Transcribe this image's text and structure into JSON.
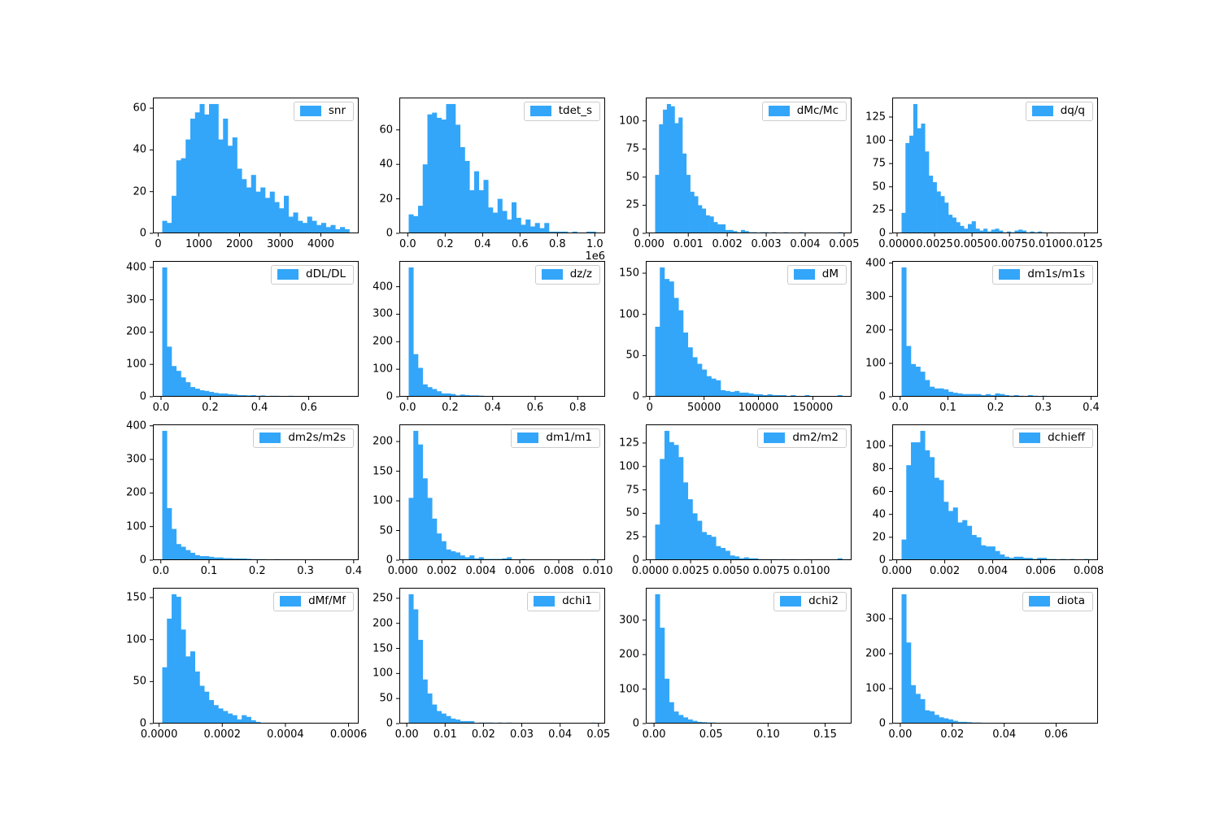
{
  "figure": {
    "background": "#ffffff",
    "bar_color": "#33A6FA",
    "spine_color": "#000000",
    "legend_border": "#cccccc",
    "legend_swatch_icon": "histogram-color-patch"
  },
  "chart_data": [
    {
      "type": "bar",
      "legend": "snr",
      "bin_start": 100,
      "bin_width": 115,
      "counts": [
        6,
        5,
        18,
        35,
        36,
        45,
        55,
        58,
        62,
        57,
        62,
        62,
        45,
        55,
        42,
        46,
        31,
        26,
        22,
        28,
        20,
        22,
        17,
        20,
        15,
        12,
        18,
        8,
        10,
        6,
        5,
        8,
        6,
        4,
        5,
        3,
        4,
        2,
        3,
        2
      ],
      "xlim": [
        -130,
        4930
      ],
      "ylim": [
        0,
        65.1
      ],
      "xticks": [
        0,
        1000,
        2000,
        3000,
        4000
      ],
      "xtick_labels": [
        "0",
        "1000",
        "2000",
        "3000",
        "4000"
      ],
      "yticks": [
        0,
        20,
        40,
        60
      ],
      "ytick_labels": [
        "0",
        "20",
        "40",
        "60"
      ],
      "offset_label": ""
    },
    {
      "type": "bar",
      "legend": "tdet_s",
      "bin_start": 5000,
      "bin_width": 25000,
      "counts": [
        11,
        10,
        16,
        40,
        69,
        70,
        67,
        66,
        75,
        75,
        63,
        50,
        42,
        25,
        36,
        25,
        31,
        15,
        12,
        20,
        13,
        8,
        18,
        9,
        5,
        8,
        4,
        6,
        3,
        6,
        1,
        1,
        1,
        1,
        0,
        1,
        0,
        0,
        1,
        1
      ],
      "xlim": [
        -45000,
        1055000
      ],
      "ylim": [
        0,
        78.75
      ],
      "xticks": [
        0,
        200000,
        400000,
        600000,
        800000,
        1000000
      ],
      "xtick_labels": [
        "0.0",
        "0.2",
        "0.4",
        "0.6",
        "0.8",
        "1.0"
      ],
      "yticks": [
        0,
        20,
        40,
        60
      ],
      "ytick_labels": [
        "0",
        "20",
        "40",
        "60"
      ],
      "offset_label": "1e6"
    },
    {
      "type": "bar",
      "legend": "dMc/Mc",
      "bin_start": 0.00015,
      "bin_width": 0.0001,
      "counts": [
        52,
        97,
        110,
        115,
        113,
        98,
        103,
        71,
        52,
        37,
        33,
        25,
        22,
        16,
        15,
        10,
        8,
        8,
        3,
        3,
        2,
        1,
        3,
        2,
        1,
        1,
        0,
        1,
        1,
        0,
        1,
        0,
        0,
        1,
        0,
        0,
        0,
        1,
        0,
        0,
        0,
        0,
        0,
        0,
        0,
        0,
        0,
        1
      ],
      "xlim": [
        -9e-05,
        0.00519
      ],
      "ylim": [
        0,
        120.75
      ],
      "xticks": [
        0.0,
        0.001,
        0.002,
        0.003,
        0.004,
        0.005
      ],
      "xtick_labels": [
        "0.000",
        "0.001",
        "0.002",
        "0.003",
        "0.004",
        "0.005"
      ],
      "yticks": [
        0,
        25,
        50,
        75,
        100
      ],
      "ytick_labels": [
        "0",
        "25",
        "50",
        "75",
        "100"
      ],
      "offset_label": ""
    },
    {
      "type": "bar",
      "legend": "dq/q",
      "bin_start": 0.0003,
      "bin_width": 0.00026,
      "counts": [
        22,
        97,
        105,
        139,
        113,
        118,
        88,
        62,
        55,
        45,
        40,
        33,
        20,
        17,
        12,
        8,
        5,
        10,
        13,
        5,
        3,
        5,
        2,
        4,
        5,
        3,
        1,
        2,
        1,
        3,
        4,
        3,
        1,
        2,
        1,
        2,
        1,
        0,
        1,
        0,
        1,
        1,
        0,
        0,
        0,
        0,
        0,
        1
      ],
      "xlim": [
        -0.000324,
        0.013404
      ],
      "ylim": [
        0,
        145.95
      ],
      "xticks": [
        0.0,
        0.0025,
        0.005,
        0.0075,
        0.01,
        0.0125
      ],
      "xtick_labels": [
        "0.0000",
        "0.0025",
        "0.0050",
        "0.0075",
        "0.0100",
        "0.0125"
      ],
      "yticks": [
        0,
        25,
        50,
        75,
        100,
        125
      ],
      "ytick_labels": [
        "0",
        "25",
        "50",
        "75",
        "100",
        "125"
      ],
      "offset_label": ""
    },
    {
      "type": "bar",
      "legend": "dDL/DL",
      "bin_start": 0.005,
      "bin_width": 0.019,
      "counts": [
        400,
        155,
        95,
        80,
        60,
        45,
        30,
        25,
        20,
        18,
        15,
        12,
        10,
        10,
        8,
        7,
        5,
        5,
        4,
        5,
        3,
        4,
        2,
        3,
        3,
        2,
        2,
        3,
        2,
        1,
        2,
        1,
        2,
        1,
        1,
        2,
        1,
        1,
        1,
        2
      ],
      "xlim": [
        -0.033,
        0.803
      ],
      "ylim": [
        0,
        420
      ],
      "xticks": [
        0.0,
        0.2,
        0.4,
        0.6
      ],
      "xtick_labels": [
        "0.0",
        "0.2",
        "0.4",
        "0.6"
      ],
      "yticks": [
        0,
        100,
        200,
        300,
        400
      ],
      "ytick_labels": [
        "0",
        "100",
        "200",
        "300",
        "400"
      ],
      "offset_label": ""
    },
    {
      "type": "bar",
      "legend": "dz/z",
      "bin_start": 0.005,
      "bin_width": 0.022,
      "counts": [
        470,
        155,
        105,
        45,
        35,
        28,
        20,
        12,
        12,
        10,
        5,
        8,
        6,
        5,
        5,
        4,
        3,
        3,
        2,
        3,
        1,
        2,
        1,
        2,
        1,
        1,
        0,
        1,
        0,
        1,
        0,
        0,
        1,
        0,
        0,
        1,
        0,
        0,
        0,
        1
      ],
      "xlim": [
        -0.039,
        0.929
      ],
      "ylim": [
        0,
        493.5
      ],
      "xticks": [
        0.0,
        0.2,
        0.4,
        0.6,
        0.8
      ],
      "xtick_labels": [
        "0.0",
        "0.2",
        "0.4",
        "0.6",
        "0.8"
      ],
      "yticks": [
        0,
        100,
        200,
        300,
        400
      ],
      "ytick_labels": [
        "0",
        "100",
        "200",
        "300",
        "400"
      ],
      "offset_label": ""
    },
    {
      "type": "bar",
      "legend": "dM",
      "bin_start": 5000,
      "bin_width": 4300,
      "counts": [
        85,
        157,
        143,
        140,
        120,
        105,
        78,
        60,
        48,
        40,
        33,
        25,
        22,
        20,
        8,
        7,
        6,
        7,
        5,
        5,
        4,
        3,
        3,
        2,
        3,
        2,
        2,
        2,
        1,
        2,
        1,
        1,
        2,
        1,
        1,
        1,
        1,
        1,
        1,
        2
      ],
      "xlim": [
        -3600,
        185600
      ],
      "ylim": [
        0,
        164.85
      ],
      "xticks": [
        0,
        50000,
        100000,
        150000
      ],
      "xtick_labels": [
        "0",
        "50000",
        "100000",
        "150000"
      ],
      "yticks": [
        0,
        50,
        100,
        150
      ],
      "ytick_labels": [
        "0",
        "50",
        "100",
        "150"
      ],
      "offset_label": ""
    },
    {
      "type": "bar",
      "legend": "dm1s/m1s",
      "bin_start": 0.003,
      "bin_width": 0.0098,
      "counts": [
        387,
        152,
        98,
        90,
        75,
        50,
        30,
        25,
        25,
        22,
        15,
        12,
        10,
        8,
        8,
        8,
        8,
        5,
        8,
        5,
        10,
        8,
        5,
        3,
        5,
        3,
        2,
        5,
        3,
        2,
        3,
        2,
        1,
        2,
        1,
        1,
        1,
        2,
        1,
        2
      ],
      "xlim": [
        -0.0166,
        0.4146
      ],
      "ylim": [
        0,
        406.35
      ],
      "xticks": [
        0.0,
        0.1,
        0.2,
        0.3,
        0.4
      ],
      "xtick_labels": [
        "0.0",
        "0.1",
        "0.2",
        "0.3",
        "0.4"
      ],
      "yticks": [
        0,
        100,
        200,
        300,
        400
      ],
      "ytick_labels": [
        "0",
        "100",
        "200",
        "300",
        "400"
      ],
      "offset_label": ""
    },
    {
      "type": "bar",
      "legend": "dm2s/m2s",
      "bin_start": 0.003,
      "bin_width": 0.0097,
      "counts": [
        385,
        155,
        93,
        48,
        40,
        30,
        22,
        15,
        12,
        12,
        10,
        8,
        8,
        6,
        6,
        5,
        5,
        5,
        4,
        3,
        3,
        3,
        2,
        2,
        3,
        2,
        2,
        1,
        2,
        1,
        1,
        1,
        1,
        1,
        1,
        0,
        1,
        0,
        0,
        2
      ],
      "xlim": [
        -0.0164,
        0.4104
      ],
      "ylim": [
        0,
        404.25
      ],
      "xticks": [
        0.0,
        0.1,
        0.2,
        0.3,
        0.4
      ],
      "xtick_labels": [
        "0.0",
        "0.1",
        "0.2",
        "0.3",
        "0.4"
      ],
      "yticks": [
        0,
        100,
        200,
        300,
        400
      ],
      "ytick_labels": [
        "0",
        "100",
        "200",
        "300",
        "400"
      ],
      "offset_label": ""
    },
    {
      "type": "bar",
      "legend": "dm1/m1",
      "bin_start": 0.0003,
      "bin_width": 0.00024,
      "counts": [
        105,
        218,
        195,
        138,
        105,
        70,
        45,
        32,
        18,
        15,
        13,
        8,
        5,
        8,
        3,
        5,
        2,
        2,
        2,
        2,
        3,
        5,
        1,
        1,
        2,
        1,
        1,
        0,
        1,
        0,
        0,
        1,
        0,
        1,
        1,
        0,
        0,
        1,
        0,
        2
      ],
      "xlim": [
        -0.00018,
        0.01038
      ],
      "ylim": [
        0,
        228.9
      ],
      "xticks": [
        0.0,
        0.002,
        0.004,
        0.006,
        0.008,
        0.01
      ],
      "xtick_labels": [
        "0.000",
        "0.002",
        "0.004",
        "0.006",
        "0.008",
        "0.010"
      ],
      "yticks": [
        0,
        50,
        100,
        150,
        200
      ],
      "ytick_labels": [
        "0",
        "50",
        "100",
        "150",
        "200"
      ],
      "offset_label": ""
    },
    {
      "type": "bar",
      "legend": "dm2/m2",
      "bin_start": 0.0003,
      "bin_width": 0.00029,
      "counts": [
        38,
        108,
        138,
        126,
        123,
        110,
        83,
        65,
        50,
        42,
        30,
        27,
        25,
        15,
        13,
        10,
        5,
        4,
        2,
        3,
        2,
        2,
        1,
        1,
        1,
        1,
        0,
        1,
        0,
        1,
        0,
        0,
        1,
        0,
        0,
        0,
        0,
        0,
        0,
        2
      ],
      "xlim": [
        -0.00028,
        0.01248
      ],
      "ylim": [
        0,
        144.9
      ],
      "xticks": [
        0.0,
        0.0025,
        0.005,
        0.0075,
        0.01
      ],
      "xtick_labels": [
        "0.0000",
        "0.0025",
        "0.0050",
        "0.0075",
        "0.0100"
      ],
      "yticks": [
        0,
        25,
        50,
        75,
        100,
        125
      ],
      "ytick_labels": [
        "0",
        "25",
        "50",
        "75",
        "100",
        "125"
      ],
      "offset_label": ""
    },
    {
      "type": "bar",
      "legend": "dchieff",
      "bin_start": 0.0002,
      "bin_width": 0.000195,
      "counts": [
        18,
        83,
        103,
        103,
        113,
        96,
        90,
        72,
        70,
        51,
        43,
        46,
        33,
        35,
        30,
        22,
        20,
        13,
        12,
        12,
        8,
        5,
        3,
        2,
        3,
        3,
        2,
        2,
        1,
        2,
        2,
        1,
        1,
        0,
        1,
        0,
        1,
        0,
        0,
        1
      ],
      "xlim": [
        -0.00019,
        0.00839
      ],
      "ylim": [
        0,
        118.65
      ],
      "xticks": [
        0.0,
        0.002,
        0.004,
        0.006,
        0.008
      ],
      "xtick_labels": [
        "0.000",
        "0.002",
        "0.004",
        "0.006",
        "0.008"
      ],
      "yticks": [
        0,
        20,
        40,
        60,
        80,
        100
      ],
      "ytick_labels": [
        "0",
        "20",
        "40",
        "60",
        "80",
        "100"
      ],
      "offset_label": ""
    },
    {
      "type": "bar",
      "legend": "dMf/Mf",
      "bin_start": 1e-05,
      "bin_width": 1.48e-05,
      "counts": [
        67,
        125,
        154,
        151,
        112,
        80,
        86,
        62,
        45,
        38,
        28,
        22,
        18,
        15,
        12,
        10,
        5,
        10,
        8,
        4,
        2,
        1,
        1,
        1,
        0,
        1,
        0,
        1,
        0,
        1,
        0,
        1,
        0,
        0,
        1,
        0,
        0,
        0,
        0,
        1
      ],
      "xlim": [
        -1.96e-05,
        0.000632
      ],
      "ylim": [
        0,
        161.7
      ],
      "xticks": [
        0.0,
        0.0002,
        0.0004,
        0.0006
      ],
      "xtick_labels": [
        "0.0000",
        "0.0002",
        "0.0004",
        "0.0006"
      ],
      "yticks": [
        0,
        50,
        100,
        150
      ],
      "ytick_labels": [
        "0",
        "50",
        "100",
        "150"
      ],
      "offset_label": ""
    },
    {
      "type": "bar",
      "legend": "dchi1",
      "bin_start": 0.0005,
      "bin_width": 0.00122,
      "counts": [
        258,
        228,
        167,
        88,
        60,
        38,
        25,
        20,
        15,
        10,
        8,
        5,
        5,
        5,
        1,
        2,
        2,
        2,
        1,
        2,
        1,
        2,
        1,
        1,
        1,
        0,
        1,
        0,
        1,
        0,
        1,
        0,
        0,
        1,
        0,
        0,
        0,
        1,
        0,
        2
      ],
      "xlim": [
        -0.00194,
        0.05174
      ],
      "ylim": [
        0,
        270.9
      ],
      "xticks": [
        0.0,
        0.01,
        0.02,
        0.03,
        0.04,
        0.05
      ],
      "xtick_labels": [
        "0.00",
        "0.01",
        "0.02",
        "0.03",
        "0.04",
        "0.05"
      ],
      "yticks": [
        0,
        50,
        100,
        150,
        200,
        250
      ],
      "ytick_labels": [
        "0",
        "50",
        "100",
        "150",
        "200",
        "250"
      ],
      "offset_label": ""
    },
    {
      "type": "bar",
      "legend": "dchi2",
      "bin_start": 0.001,
      "bin_width": 0.0041,
      "counts": [
        375,
        278,
        130,
        62,
        35,
        25,
        18,
        12,
        8,
        5,
        4,
        3,
        3,
        2,
        2,
        1,
        1,
        1,
        1,
        0,
        1,
        0,
        0,
        0,
        1,
        0,
        0,
        0,
        0,
        0,
        0,
        0,
        0,
        0,
        0,
        0,
        0,
        0,
        0,
        1
      ],
      "xlim": [
        -0.0072,
        0.1732
      ],
      "ylim": [
        0,
        393.75
      ],
      "xticks": [
        0.0,
        0.05,
        0.1,
        0.15
      ],
      "xtick_labels": [
        "0.00",
        "0.05",
        "0.10",
        "0.15"
      ],
      "yticks": [
        0,
        100,
        200,
        300
      ],
      "ytick_labels": [
        "0",
        "100",
        "200",
        "300"
      ],
      "offset_label": ""
    },
    {
      "type": "bar",
      "legend": "diota",
      "bin_start": 0.0005,
      "bin_width": 0.0018,
      "counts": [
        370,
        232,
        110,
        85,
        70,
        38,
        35,
        25,
        18,
        15,
        12,
        8,
        5,
        5,
        4,
        3,
        3,
        2,
        2,
        1,
        1,
        2,
        1,
        1,
        0,
        1,
        1,
        0,
        1,
        0,
        0,
        1,
        0,
        1,
        0,
        0,
        0,
        1,
        1,
        0
      ],
      "xlim": [
        -0.0031,
        0.0761
      ],
      "ylim": [
        0,
        388.5
      ],
      "xticks": [
        0.0,
        0.02,
        0.04,
        0.06
      ],
      "xtick_labels": [
        "0.00",
        "0.02",
        "0.04",
        "0.06"
      ],
      "yticks": [
        0,
        100,
        200,
        300
      ],
      "ytick_labels": [
        "0",
        "100",
        "200",
        "300"
      ],
      "offset_label": ""
    }
  ]
}
